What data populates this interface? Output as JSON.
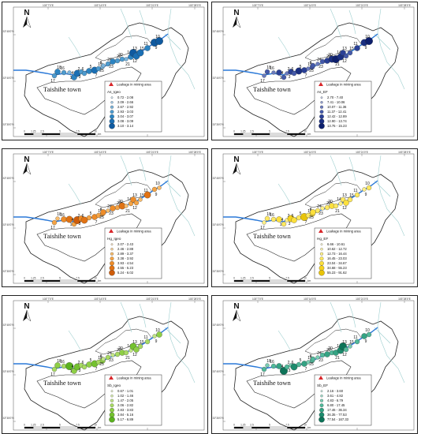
{
  "common": {
    "town_name": "Taishihe town",
    "leakage_label": "Leakage in mining area",
    "north_label": "N",
    "lon_ticks": [
      "103°7'0\"E",
      "103°14'0\"E",
      "103°21'0\"E",
      "103°28'0\"E"
    ],
    "lat_ticks": [
      "33°45'0\"N",
      "33°40'0\"N",
      "33°35'0\"N"
    ],
    "scale_ticks": [
      "0",
      "1.25",
      "2.5",
      "5",
      "7.5",
      "10"
    ],
    "scale_unit": "km",
    "site_labels": [
      "1",
      "2",
      "3",
      "4",
      "5",
      "6",
      "7",
      "8",
      "9",
      "10",
      "11",
      "12",
      "13",
      "14",
      "15",
      "16",
      "17",
      "18",
      "19",
      "20",
      "21",
      "22",
      "23",
      "24",
      "25"
    ]
  },
  "panels": [
    {
      "id": "as-igeo",
      "legend_title": "As_Igeo",
      "classes": [
        "0.72 - 2.08",
        "2.09 - 2.66",
        "2.67 - 2.92",
        "2.93 - 3.03",
        "3.04 - 3.07",
        "3.08 - 3.09",
        "3.10 - 3.14"
      ],
      "colors": [
        "#d7e8f6",
        "#a8cde9",
        "#7ab4dc",
        "#4d9bcf",
        "#2c84c2",
        "#1a6fb4",
        "#0f5aa0"
      ]
    },
    {
      "id": "as-ef",
      "legend_title": "As_EF",
      "classes": [
        "2.70 - 7.40",
        "7.41 - 10.06",
        "10.07 - 11.36",
        "11.37 - 12.41",
        "12.42 - 12.89",
        "12.90 - 13.74",
        "13.75 - 15.23"
      ],
      "colors": [
        "#c3cbe6",
        "#96a3d3",
        "#6a7bbf",
        "#4459aa",
        "#2a4096",
        "#1a2f82",
        "#0d1f6d"
      ]
    },
    {
      "id": "hg-igeo",
      "legend_title": "Hg_Igeo",
      "classes": [
        "2.07 - 2.43",
        "2.46 - 2.88",
        "2.89 - 3.37",
        "3.38 - 3.92",
        "3.93 - 4.54",
        "4.55 - 5.23",
        "5.24 - 6.02"
      ],
      "colors": [
        "#fde9c9",
        "#fcd49b",
        "#f9bd6c",
        "#f5a445",
        "#ee8c28",
        "#e17314",
        "#cf5d0a"
      ]
    },
    {
      "id": "hg-ef",
      "legend_title": "Hg_EF",
      "classes": [
        "6.66 - 10.61",
        "10.62 - 12.72",
        "12.73 - 16.44",
        "16.45 - 23.03",
        "23.04 - 34.67",
        "34.68 - 55.23",
        "55.23 - 91.62"
      ],
      "colors": [
        "#fffbd6",
        "#fff6ae",
        "#fff087",
        "#ffe960",
        "#fde03c",
        "#f6d31f",
        "#e9c40a"
      ]
    },
    {
      "id": "sb-igeo",
      "legend_title": "Sb_Igeo",
      "classes": [
        "0.67 - 1.01",
        "1.02 - 1.46",
        "1.47 - 2.05",
        "2.06 - 2.82",
        "2.83 - 3.83",
        "3.84 - 5.16",
        "5.17 - 6.89"
      ],
      "colors": [
        "#eef8d4",
        "#d9f0ad",
        "#c2e686",
        "#a8db62",
        "#8ecf45",
        "#74c22f",
        "#5bb21f"
      ]
    },
    {
      "id": "sb-ef",
      "legend_title": "Sb_EF",
      "classes": [
        "2.16 - 3.60",
        "3.61 - 4.82",
        "4.83 - 6.79",
        "6.80 - 17.45",
        "17.46 - 36.34",
        "36.35 - 77.53",
        "77.54 - 167.33"
      ],
      "colors": [
        "#cdeee3",
        "#a3dfcc",
        "#79cdb3",
        "#51b99a",
        "#34a383",
        "#1d8b6d",
        "#0d7358"
      ]
    }
  ]
}
